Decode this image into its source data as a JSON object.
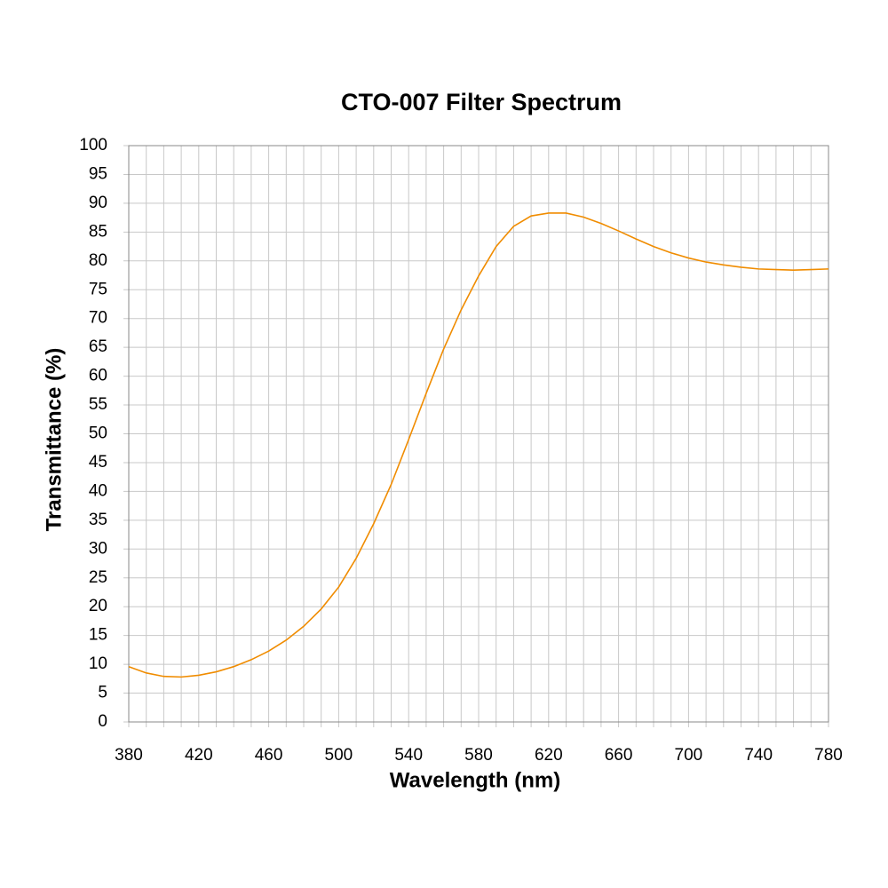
{
  "chart_data": {
    "type": "line",
    "title": "CTO-007 Filter Spectrum",
    "x_label": "Wavelength (nm)",
    "y_label": "Transmittance (%)",
    "x": [
      380,
      390,
      400,
      410,
      420,
      430,
      440,
      450,
      460,
      470,
      480,
      490,
      500,
      510,
      520,
      530,
      540,
      550,
      560,
      570,
      580,
      590,
      600,
      610,
      620,
      630,
      640,
      650,
      660,
      670,
      680,
      690,
      700,
      710,
      720,
      730,
      740,
      750,
      760,
      770,
      780
    ],
    "series": [
      {
        "name": "CTO-007",
        "color": "#f08c00",
        "values": [
          9.6,
          8.5,
          7.9,
          7.8,
          8.1,
          8.7,
          9.6,
          10.8,
          12.3,
          14.2,
          16.6,
          19.6,
          23.4,
          28.4,
          34.4,
          41.2,
          49.0,
          57.0,
          64.7,
          71.5,
          77.4,
          82.5,
          86.0,
          87.8,
          88.3,
          88.3,
          87.6,
          86.5,
          85.2,
          83.8,
          82.5,
          81.4,
          80.5,
          79.8,
          79.3,
          78.9,
          78.6,
          78.5,
          78.4,
          78.5,
          78.6
        ]
      }
    ],
    "xlim": [
      380,
      780
    ],
    "xticks": [
      380,
      420,
      460,
      500,
      540,
      580,
      620,
      660,
      700,
      740,
      780
    ],
    "ylim": [
      0,
      100
    ],
    "yticks": [
      0,
      5,
      10,
      15,
      20,
      25,
      30,
      35,
      40,
      45,
      50,
      55,
      60,
      65,
      70,
      75,
      80,
      85,
      90,
      95,
      100
    ],
    "grid": true,
    "x_minor_per_major": 4
  }
}
